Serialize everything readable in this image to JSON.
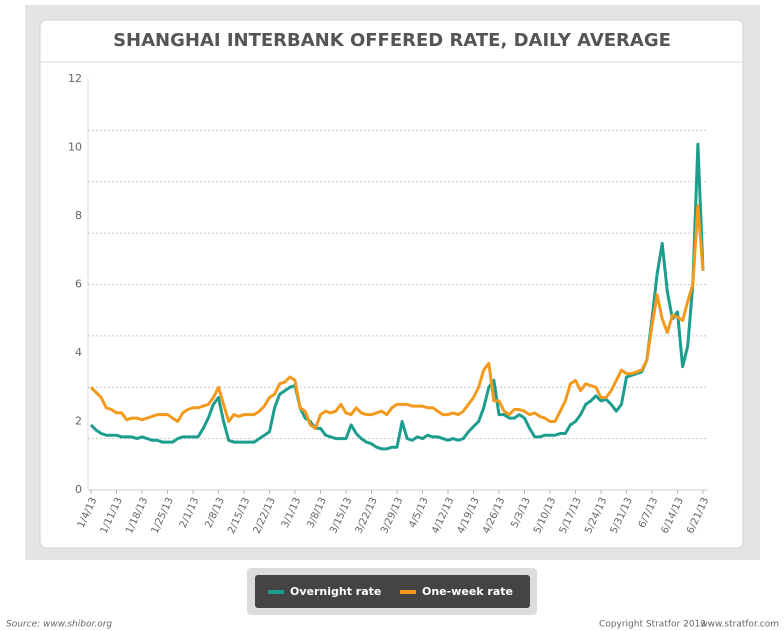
{
  "chart_data": {
    "type": "line",
    "title": "SHANGHAI INTERBANK OFFERED RATE, DAILY AVERAGE",
    "categories": [
      "1/4/13",
      null,
      null,
      null,
      null,
      "1/11/13",
      null,
      null,
      null,
      null,
      "1/18/13",
      null,
      null,
      null,
      null,
      "1/25/13",
      null,
      null,
      null,
      null,
      "2/1/13",
      null,
      null,
      null,
      null,
      "2/8/13",
      null,
      null,
      null,
      null,
      "2/15/13",
      null,
      null,
      null,
      null,
      "2/22/13",
      null,
      null,
      null,
      null,
      "3/1/13",
      null,
      null,
      null,
      null,
      "3/8/13",
      null,
      null,
      null,
      null,
      "3/15/13",
      null,
      null,
      null,
      null,
      "3/22/13",
      null,
      null,
      null,
      null,
      "3/29/13",
      null,
      null,
      null,
      null,
      "4/5/13",
      null,
      null,
      null,
      null,
      "4/12/13",
      null,
      null,
      null,
      null,
      "4/19/13",
      null,
      null,
      null,
      null,
      "4/26/13",
      null,
      null,
      null,
      null,
      "5/3/13",
      null,
      null,
      null,
      null,
      "5/10/13",
      null,
      null,
      null,
      null,
      "5/17/13",
      null,
      null,
      null,
      null,
      "5/24/13",
      null,
      null,
      null,
      null,
      "5/31/13",
      null,
      null,
      null,
      null,
      "6/7/13",
      null,
      null,
      null,
      null,
      "6/14/13",
      null,
      null,
      null,
      null,
      "6/21/13"
    ],
    "series": [
      {
        "name": "Overnight rate",
        "color": "#1c9d8e",
        "values": [
          1.9,
          1.75,
          1.65,
          1.6,
          1.6,
          1.6,
          1.55,
          1.55,
          1.55,
          1.5,
          1.55,
          1.5,
          1.45,
          1.45,
          1.4,
          1.4,
          1.4,
          1.5,
          1.55,
          1.55,
          1.55,
          1.55,
          1.8,
          2.1,
          2.5,
          2.7,
          2.0,
          1.45,
          1.4,
          1.4,
          1.4,
          1.4,
          1.4,
          1.5,
          1.6,
          1.7,
          2.4,
          2.8,
          2.9,
          3.0,
          3.05,
          2.4,
          2.1,
          2.0,
          1.8,
          1.8,
          1.6,
          1.55,
          1.5,
          1.5,
          1.5,
          1.9,
          1.65,
          1.5,
          1.4,
          1.35,
          1.25,
          1.2,
          1.2,
          1.25,
          1.25,
          2.0,
          1.5,
          1.45,
          1.55,
          1.5,
          1.6,
          1.55,
          1.55,
          1.5,
          1.45,
          1.5,
          1.45,
          1.5,
          1.7,
          1.85,
          2.0,
          2.4,
          3.0,
          3.2,
          2.2,
          2.2,
          2.1,
          2.1,
          2.2,
          2.1,
          1.8,
          1.55,
          1.55,
          1.6,
          1.6,
          1.6,
          1.65,
          1.65,
          1.9,
          2.0,
          2.2,
          2.5,
          2.6,
          2.75,
          2.6,
          2.65,
          2.5,
          2.3,
          2.5,
          3.3,
          3.35,
          3.4,
          3.45,
          3.8,
          5.0,
          6.3,
          7.2,
          5.8,
          5.0,
          5.2,
          3.6,
          4.2,
          6.0,
          10.1,
          6.4
        ]
      },
      {
        "name": "One-week rate",
        "color": "#f39a1e",
        "values": [
          3.0,
          2.85,
          2.7,
          2.4,
          2.35,
          2.25,
          2.25,
          2.05,
          2.1,
          2.1,
          2.05,
          2.1,
          2.15,
          2.2,
          2.2,
          2.2,
          2.1,
          2.0,
          2.25,
          2.35,
          2.4,
          2.4,
          2.45,
          2.5,
          2.7,
          3.0,
          2.5,
          2.0,
          2.2,
          2.15,
          2.2,
          2.2,
          2.2,
          2.3,
          2.45,
          2.7,
          2.8,
          3.1,
          3.15,
          3.3,
          3.2,
          2.4,
          2.3,
          1.9,
          1.8,
          2.2,
          2.3,
          2.25,
          2.3,
          2.5,
          2.25,
          2.2,
          2.4,
          2.25,
          2.2,
          2.2,
          2.25,
          2.3,
          2.2,
          2.4,
          2.5,
          2.5,
          2.5,
          2.45,
          2.45,
          2.45,
          2.4,
          2.4,
          2.3,
          2.2,
          2.2,
          2.25,
          2.2,
          2.3,
          2.5,
          2.7,
          3.0,
          3.5,
          3.7,
          2.6,
          2.6,
          2.3,
          2.2,
          2.35,
          2.35,
          2.3,
          2.2,
          2.25,
          2.15,
          2.1,
          2.0,
          2.0,
          2.3,
          2.6,
          3.1,
          3.2,
          2.9,
          3.1,
          3.05,
          3.0,
          2.7,
          2.7,
          2.9,
          3.2,
          3.5,
          3.4,
          3.4,
          3.45,
          3.5,
          3.8,
          4.8,
          5.7,
          5.0,
          4.6,
          5.1,
          5.05,
          4.95,
          5.5,
          6.0,
          8.3,
          6.4
        ]
      }
    ],
    "ylim": [
      0,
      12
    ],
    "yticks": [
      0,
      2,
      4,
      6,
      8,
      10,
      12
    ],
    "ygrid": [
      1.5,
      3,
      4.5,
      6,
      7.5,
      9,
      10.5
    ],
    "source": "Source: www.shibor.org",
    "copyright": "Copyright Stratfor 2013",
    "website": "www.stratfor.com"
  }
}
